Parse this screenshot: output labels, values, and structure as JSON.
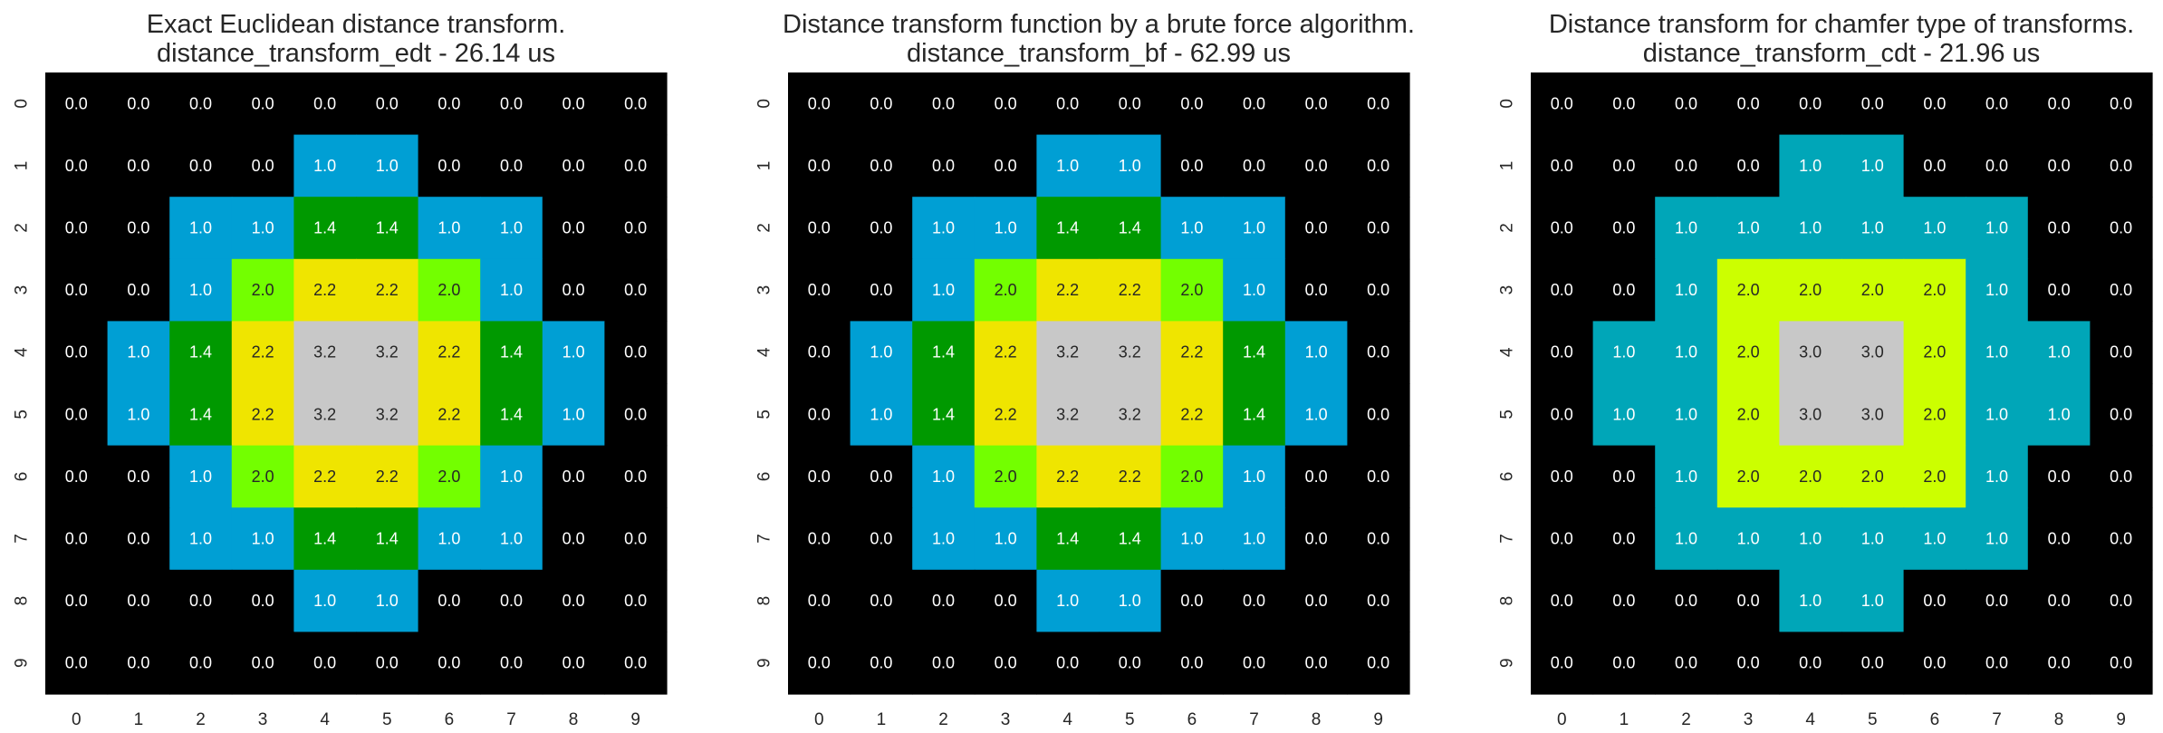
{
  "chart_data": [
    {
      "type": "heatmap",
      "title": "Exact Euclidean distance transform.",
      "subtitle": "distance_transform_edt - 26.14 us",
      "x_ticks": [
        "0",
        "1",
        "2",
        "3",
        "4",
        "5",
        "6",
        "7",
        "8",
        "9"
      ],
      "y_ticks": [
        "0",
        "1",
        "2",
        "3",
        "4",
        "5",
        "6",
        "7",
        "8",
        "9"
      ],
      "grid": false,
      "values": [
        [
          0.0,
          0.0,
          0.0,
          0.0,
          0.0,
          0.0,
          0.0,
          0.0,
          0.0,
          0.0
        ],
        [
          0.0,
          0.0,
          0.0,
          0.0,
          1.0,
          1.0,
          0.0,
          0.0,
          0.0,
          0.0
        ],
        [
          0.0,
          0.0,
          1.0,
          1.0,
          1.4,
          1.4,
          1.0,
          1.0,
          0.0,
          0.0
        ],
        [
          0.0,
          0.0,
          1.0,
          2.0,
          2.2,
          2.2,
          2.0,
          1.0,
          0.0,
          0.0
        ],
        [
          0.0,
          1.0,
          1.4,
          2.2,
          3.2,
          3.2,
          2.2,
          1.4,
          1.0,
          0.0
        ],
        [
          0.0,
          1.0,
          1.4,
          2.2,
          3.2,
          3.2,
          2.2,
          1.4,
          1.0,
          0.0
        ],
        [
          0.0,
          0.0,
          1.0,
          2.0,
          2.2,
          2.2,
          2.0,
          1.0,
          0.0,
          0.0
        ],
        [
          0.0,
          0.0,
          1.0,
          1.0,
          1.4,
          1.4,
          1.0,
          1.0,
          0.0,
          0.0
        ],
        [
          0.0,
          0.0,
          0.0,
          0.0,
          1.0,
          1.0,
          0.0,
          0.0,
          0.0,
          0.0
        ],
        [
          0.0,
          0.0,
          0.0,
          0.0,
          0.0,
          0.0,
          0.0,
          0.0,
          0.0,
          0.0
        ]
      ],
      "colors": {
        "0.0": "#000000",
        "1.0": "#009fd4",
        "1.4": "#009900",
        "2.0": "#73ff00",
        "2.2": "#efe500",
        "3.2": "#c8c8c8"
      }
    },
    {
      "type": "heatmap",
      "title": "Distance transform function by a brute force algorithm.",
      "subtitle": "distance_transform_bf - 62.99 us",
      "x_ticks": [
        "0",
        "1",
        "2",
        "3",
        "4",
        "5",
        "6",
        "7",
        "8",
        "9"
      ],
      "y_ticks": [
        "0",
        "1",
        "2",
        "3",
        "4",
        "5",
        "6",
        "7",
        "8",
        "9"
      ],
      "grid": false,
      "values": [
        [
          0.0,
          0.0,
          0.0,
          0.0,
          0.0,
          0.0,
          0.0,
          0.0,
          0.0,
          0.0
        ],
        [
          0.0,
          0.0,
          0.0,
          0.0,
          1.0,
          1.0,
          0.0,
          0.0,
          0.0,
          0.0
        ],
        [
          0.0,
          0.0,
          1.0,
          1.0,
          1.4,
          1.4,
          1.0,
          1.0,
          0.0,
          0.0
        ],
        [
          0.0,
          0.0,
          1.0,
          2.0,
          2.2,
          2.2,
          2.0,
          1.0,
          0.0,
          0.0
        ],
        [
          0.0,
          1.0,
          1.4,
          2.2,
          3.2,
          3.2,
          2.2,
          1.4,
          1.0,
          0.0
        ],
        [
          0.0,
          1.0,
          1.4,
          2.2,
          3.2,
          3.2,
          2.2,
          1.4,
          1.0,
          0.0
        ],
        [
          0.0,
          0.0,
          1.0,
          2.0,
          2.2,
          2.2,
          2.0,
          1.0,
          0.0,
          0.0
        ],
        [
          0.0,
          0.0,
          1.0,
          1.0,
          1.4,
          1.4,
          1.0,
          1.0,
          0.0,
          0.0
        ],
        [
          0.0,
          0.0,
          0.0,
          0.0,
          1.0,
          1.0,
          0.0,
          0.0,
          0.0,
          0.0
        ],
        [
          0.0,
          0.0,
          0.0,
          0.0,
          0.0,
          0.0,
          0.0,
          0.0,
          0.0,
          0.0
        ]
      ],
      "colors": {
        "0.0": "#000000",
        "1.0": "#009fd4",
        "1.4": "#009900",
        "2.0": "#73ff00",
        "2.2": "#efe500",
        "3.2": "#c8c8c8"
      }
    },
    {
      "type": "heatmap",
      "title": "Distance transform for chamfer type of transforms.",
      "subtitle": "distance_transform_cdt - 21.96 us",
      "x_ticks": [
        "0",
        "1",
        "2",
        "3",
        "4",
        "5",
        "6",
        "7",
        "8",
        "9"
      ],
      "y_ticks": [
        "0",
        "1",
        "2",
        "3",
        "4",
        "5",
        "6",
        "7",
        "8",
        "9"
      ],
      "grid": false,
      "values": [
        [
          0.0,
          0.0,
          0.0,
          0.0,
          0.0,
          0.0,
          0.0,
          0.0,
          0.0,
          0.0
        ],
        [
          0.0,
          0.0,
          0.0,
          0.0,
          1.0,
          1.0,
          0.0,
          0.0,
          0.0,
          0.0
        ],
        [
          0.0,
          0.0,
          1.0,
          1.0,
          1.0,
          1.0,
          1.0,
          1.0,
          0.0,
          0.0
        ],
        [
          0.0,
          0.0,
          1.0,
          2.0,
          2.0,
          2.0,
          2.0,
          1.0,
          0.0,
          0.0
        ],
        [
          0.0,
          1.0,
          1.0,
          2.0,
          3.0,
          3.0,
          2.0,
          1.0,
          1.0,
          0.0
        ],
        [
          0.0,
          1.0,
          1.0,
          2.0,
          3.0,
          3.0,
          2.0,
          1.0,
          1.0,
          0.0
        ],
        [
          0.0,
          0.0,
          1.0,
          2.0,
          2.0,
          2.0,
          2.0,
          1.0,
          0.0,
          0.0
        ],
        [
          0.0,
          0.0,
          1.0,
          1.0,
          1.0,
          1.0,
          1.0,
          1.0,
          0.0,
          0.0
        ],
        [
          0.0,
          0.0,
          0.0,
          0.0,
          1.0,
          1.0,
          0.0,
          0.0,
          0.0,
          0.0
        ],
        [
          0.0,
          0.0,
          0.0,
          0.0,
          0.0,
          0.0,
          0.0,
          0.0,
          0.0,
          0.0
        ]
      ],
      "colors": {
        "0.0": "#000000",
        "1.0": "#00a6b8",
        "2.0": "#ccff00",
        "3.0": "#c8c8c8"
      }
    }
  ]
}
